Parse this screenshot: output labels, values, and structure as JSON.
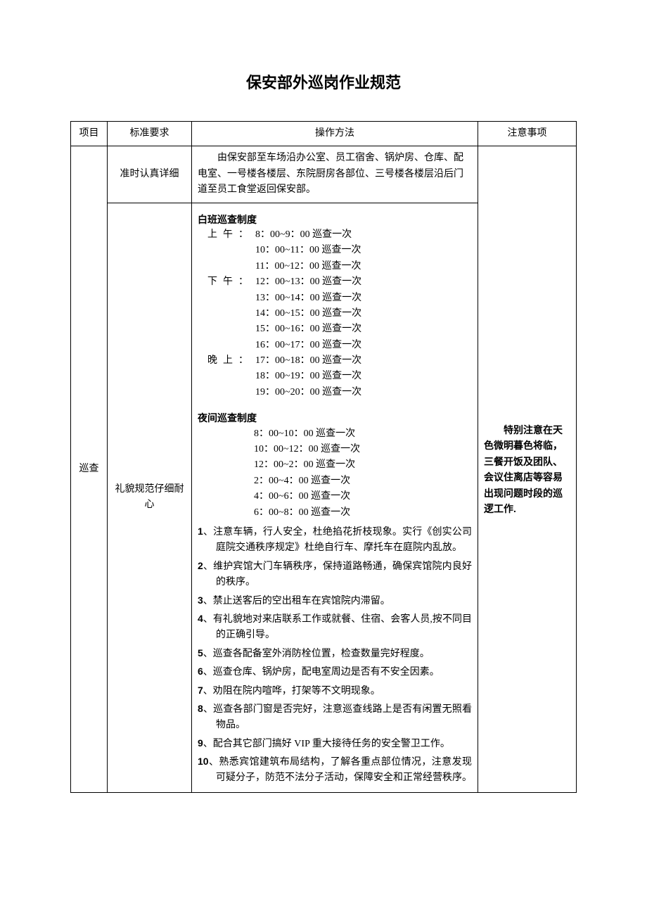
{
  "title": "保安部外巡岗作业规范",
  "table": {
    "headers": {
      "project": "项目",
      "standard": "标准要求",
      "method": "操作方法",
      "note": "注意事项"
    },
    "project_value": "巡查",
    "row1": {
      "standard": "准时认真详细",
      "method_intro": "由保安部至车场沿办公室、员工宿舍、锅炉房、仓库、配电室、一号楼各楼层、东院厨房各部位、三号楼各楼层沿后门道至员工食堂返回保安部。"
    },
    "row2": {
      "standard": "礼貌规范仔细耐心",
      "day_label": "白班巡查制度",
      "day_schedule": [
        {
          "prefix": "上午：",
          "time": "8：00~9：00 巡查一次"
        },
        {
          "prefix": "",
          "time": "10：00~11：00 巡查一次"
        },
        {
          "prefix": "",
          "time": "11：00~12：00 巡查一次"
        },
        {
          "prefix": "下午：",
          "time": "12：00~13：00 巡查一次"
        },
        {
          "prefix": "",
          "time": "13：00~14：00 巡查一次"
        },
        {
          "prefix": "",
          "time": "14：00~15：00 巡查一次"
        },
        {
          "prefix": "",
          "time": "15：00~16：00 巡查一次"
        },
        {
          "prefix": "",
          "time": "16：00~17：00 巡查一次"
        },
        {
          "prefix": "晚上：",
          "time": "17：00~18：00 巡查一次"
        },
        {
          "prefix": "",
          "time": "18：00~19：00 巡查一次"
        },
        {
          "prefix": "",
          "time": "19：00~20：00 巡查一次"
        }
      ],
      "night_label": "夜间巡查制度",
      "night_schedule": [
        {
          "time": "8：00~10：00 巡查一次"
        },
        {
          "time": "10：00~12：00 巡查一次"
        },
        {
          "time": "12：00~2：00 巡查一次"
        },
        {
          "time": "2：00~4：00 巡查一次"
        },
        {
          "time": "4：00~6：00 巡查一次"
        },
        {
          "time": "6：00~8：00 巡查一次"
        }
      ],
      "duties": [
        "注意车辆，行人安全，杜绝掐花折枝现象。实行《创实公司庭院交通秩序规定》杜绝自行车、摩托车在庭院内乱放。",
        "维护宾馆大门车辆秩序，保持道路畅通，确保宾馆院内良好的秩序。",
        "禁止送客后的空出租车在宾馆院内滞留。",
        "有礼貌地对来店联系工作或就餐、住宿、会客人员,按不同目的正确引导。",
        "巡查各配备室外消防栓位置，检查数量完好程度。",
        "巡查仓库、锅炉房，配电室周边是否有不安全因素。",
        "劝阻在院内喧哗，打架等不文明现象。",
        "巡查各部门窗是否完好，注意巡查线路上是否有闲置无照看物品。",
        "配合其它部门搞好 VIP 重大接待任务的安全警卫工作。",
        "熟悉宾馆建筑布局结构，了解各重点部位情况，注意发现可疑分子，防范不法分子活动，保障安全和正常经营秩序。"
      ]
    },
    "note_text": "特别注意在天色微明暮色将临，三餐开饭及团队、会议住离店等容易出现问题时段的巡逻工作."
  },
  "style": {
    "title_fontsize": 22,
    "body_fontsize": 14,
    "border_color": "#000000",
    "background_color": "#ffffff",
    "text_color": "#000000"
  }
}
